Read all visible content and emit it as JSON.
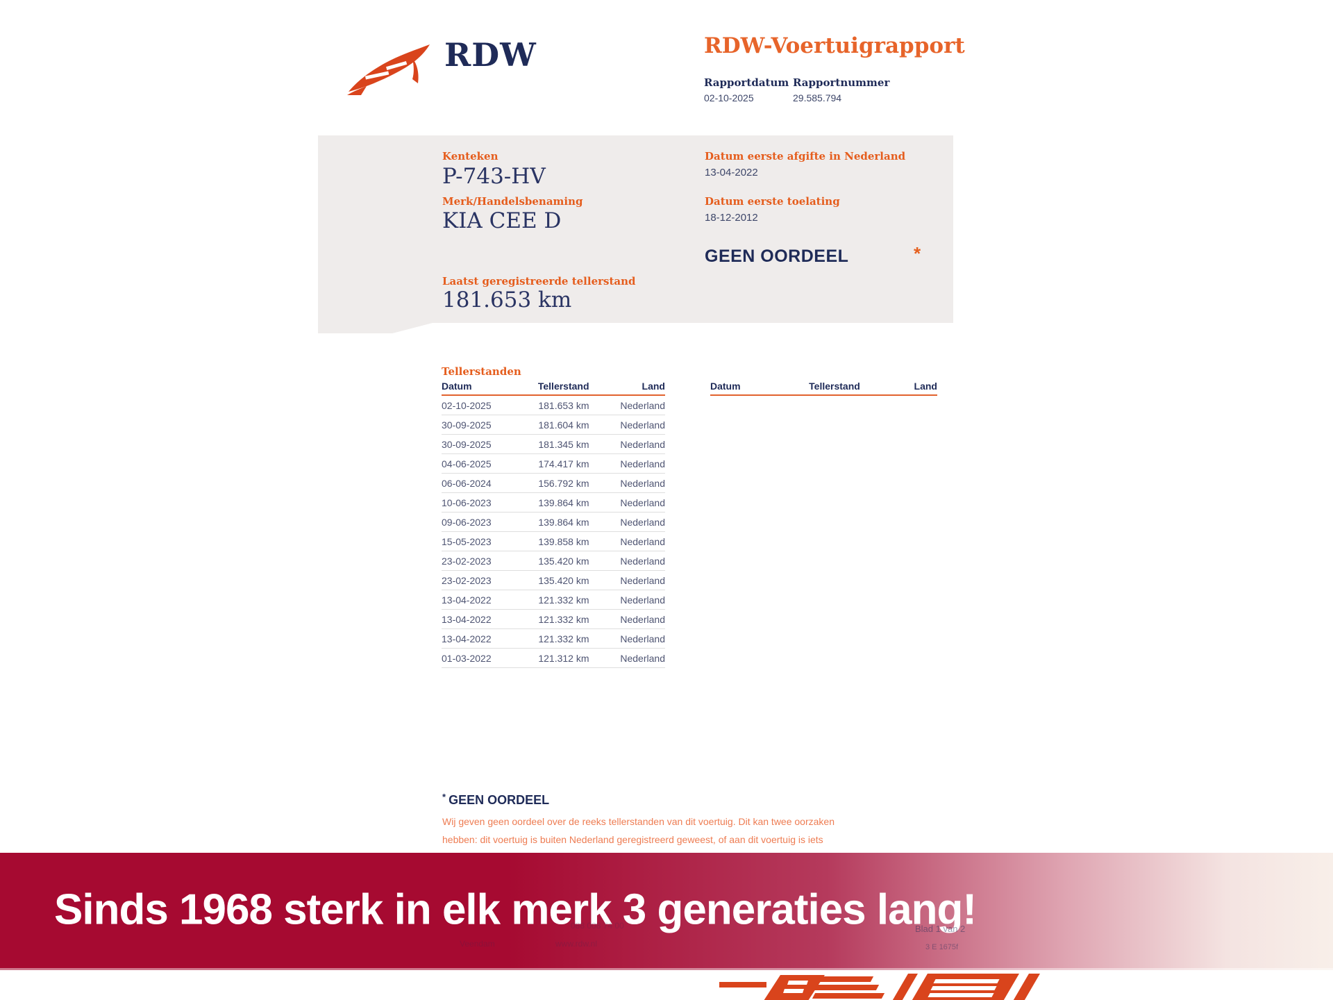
{
  "header": {
    "brand": "RDW",
    "title": "RDW-Voertuigrapport",
    "report_date_label": "Rapportdatum",
    "report_date": "02-10-2025",
    "report_number_label": "Rapportnummer",
    "report_number": "29.585.794"
  },
  "summary_box": {
    "kenteken_label": "Kenteken",
    "kenteken": "P-743-HV",
    "merk_label": "Merk/Handelsbenaming",
    "merk": "KIA CEE D",
    "tellerstand_label": "Laatst geregistreerde tellerstand",
    "tellerstand": "181.653 km",
    "afgifte_label": "Datum eerste afgifte in Nederland",
    "afgifte": "13-04-2022",
    "toelating_label": "Datum eerste toelating",
    "toelating": "18-12-2012",
    "oordeel": "GEEN OORDEEL",
    "oordeel_marker": "*"
  },
  "section_title": "Tellerstanden",
  "meter_tables": [
    {
      "columns": [
        "Datum",
        "Tellerstand",
        "Land"
      ],
      "rows": [
        [
          "02-10-2025",
          "181.653 km",
          "Nederland"
        ],
        [
          "30-09-2025",
          "181.604 km",
          "Nederland"
        ],
        [
          "30-09-2025",
          "181.345 km",
          "Nederland"
        ],
        [
          "04-06-2025",
          "174.417 km",
          "Nederland"
        ],
        [
          "06-06-2024",
          "156.792 km",
          "Nederland"
        ],
        [
          "10-06-2023",
          "139.864 km",
          "Nederland"
        ],
        [
          "09-06-2023",
          "139.864 km",
          "Nederland"
        ],
        [
          "15-05-2023",
          "139.858 km",
          "Nederland"
        ],
        [
          "23-02-2023",
          "135.420 km",
          "Nederland"
        ],
        [
          "23-02-2023",
          "135.420 km",
          "Nederland"
        ],
        [
          "13-04-2022",
          "121.332 km",
          "Nederland"
        ],
        [
          "13-04-2022",
          "121.332 km",
          "Nederland"
        ],
        [
          "13-04-2022",
          "121.332 km",
          "Nederland"
        ],
        [
          "01-03-2022",
          "121.312 km",
          "Nederland"
        ]
      ]
    },
    {
      "columns": [
        "Datum",
        "Tellerstand",
        "Land"
      ],
      "rows": []
    }
  ],
  "footnote": {
    "marker": "*",
    "title": "GEEN OORDEEL",
    "text": "Wij geven geen oordeel over de reeks tellerstanden van dit voertuig. Dit kan twee oorzaken hebben: dit voertuig is buiten Nederland geregistreerd geweest, of aan dit voertuig is iets veranderd waardoor het een ander kenteken heeft gekregen."
  },
  "banner": {
    "text": "Sinds 1968 sterk in elk merk 3 generaties lang!"
  },
  "faint": {
    "phone": "088 008 74 00",
    "city": "Veendam",
    "site": "www.rdw.nl",
    "page": "Blad 1 van 2",
    "form": "3 E 1675f"
  },
  "colors": {
    "accent_orange": "#e5601f",
    "navy": "#1f2b58",
    "paragraph_orange": "#ee7c52",
    "banner_red": "#a60a31",
    "logo_orange": "#d9441c",
    "box_gray": "#efeceb",
    "table_text": "#4e5472"
  }
}
